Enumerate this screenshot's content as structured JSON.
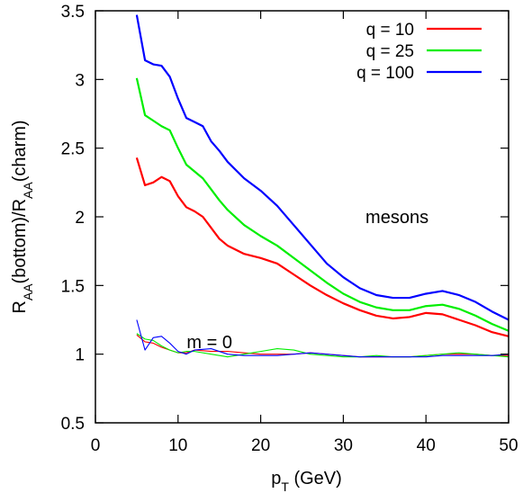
{
  "chart_data": {
    "type": "line",
    "title": "",
    "xlabel": {
      "main": "p",
      "sub": "T",
      "rest": " (GeV)"
    },
    "ylabel": {
      "p1": "R",
      "s1": "AA",
      "p2": "(bottom)/R",
      "s2": "AA",
      "p3": "(charm)"
    },
    "xlim": [
      0,
      50
    ],
    "ylim": [
      0.5,
      3.5
    ],
    "xticks": [
      0,
      10,
      20,
      30,
      40,
      50
    ],
    "yticks": [
      0.5,
      1,
      1.5,
      2,
      2.5,
      3,
      3.5
    ],
    "xtick_labels": [
      "0",
      "10",
      "20",
      "30",
      "40",
      "50"
    ],
    "ytick_labels": [
      "0.5",
      "1",
      "1.5",
      "2",
      "2.5",
      "3",
      "3.5"
    ],
    "grid": false,
    "legend_position": "top-right",
    "annotations": [
      {
        "text": "mesons",
        "x": 36.5,
        "y": 2.0
      },
      {
        "text": "m = 0",
        "x": 13.8,
        "y": 1.09
      }
    ],
    "series": [
      {
        "name": "q = 10",
        "color": "#ff0000",
        "group": "mesons",
        "x": [
          5,
          6,
          7,
          8,
          9,
          10,
          11,
          12,
          13,
          14,
          15,
          16,
          18,
          20,
          22,
          24,
          26,
          28,
          30,
          32,
          34,
          36,
          38,
          40,
          42,
          44,
          46,
          48,
          50
        ],
        "y": [
          2.43,
          2.23,
          2.25,
          2.29,
          2.26,
          2.15,
          2.07,
          2.04,
          2.0,
          1.92,
          1.84,
          1.79,
          1.73,
          1.7,
          1.66,
          1.58,
          1.5,
          1.43,
          1.37,
          1.32,
          1.28,
          1.26,
          1.27,
          1.3,
          1.29,
          1.25,
          1.21,
          1.16,
          1.13
        ]
      },
      {
        "name": "q = 25",
        "color": "#00ee00",
        "group": "mesons",
        "x": [
          5,
          6,
          7,
          8,
          9,
          10,
          11,
          12,
          13,
          14,
          15,
          16,
          18,
          20,
          22,
          24,
          26,
          28,
          30,
          32,
          34,
          36,
          38,
          40,
          42,
          44,
          46,
          48,
          50
        ],
        "y": [
          3.01,
          2.74,
          2.7,
          2.66,
          2.63,
          2.5,
          2.38,
          2.33,
          2.28,
          2.2,
          2.12,
          2.05,
          1.94,
          1.86,
          1.79,
          1.7,
          1.61,
          1.52,
          1.44,
          1.38,
          1.34,
          1.32,
          1.32,
          1.35,
          1.36,
          1.33,
          1.28,
          1.22,
          1.17
        ]
      },
      {
        "name": "q = 100",
        "color": "#0000ff",
        "group": "mesons",
        "x": [
          5,
          6,
          7,
          8,
          9,
          10,
          11,
          12,
          13,
          14,
          15,
          16,
          18,
          20,
          22,
          24,
          26,
          28,
          30,
          32,
          34,
          36,
          38,
          40,
          42,
          44,
          46,
          48,
          50
        ],
        "y": [
          3.47,
          3.14,
          3.11,
          3.1,
          3.02,
          2.86,
          2.72,
          2.69,
          2.66,
          2.55,
          2.48,
          2.4,
          2.28,
          2.19,
          2.08,
          1.94,
          1.8,
          1.66,
          1.56,
          1.48,
          1.43,
          1.41,
          1.41,
          1.44,
          1.46,
          1.43,
          1.38,
          1.31,
          1.25
        ]
      },
      {
        "name": "",
        "color": "#ff0000",
        "group": "m = 0",
        "x": [
          5,
          6,
          7,
          8,
          9,
          10,
          11,
          12,
          14,
          16,
          18,
          20,
          22,
          24,
          26,
          28,
          30,
          32,
          34,
          36,
          38,
          40,
          42,
          44,
          46,
          48,
          50
        ],
        "y": [
          1.14,
          1.09,
          1.08,
          1.05,
          1.03,
          1.01,
          1.01,
          1.03,
          1.02,
          1.02,
          1.01,
          1.0,
          1.0,
          1.0,
          1.01,
          1.0,
          0.99,
          0.98,
          0.98,
          0.98,
          0.98,
          0.99,
          1.0,
          1.0,
          1.0,
          0.99,
          0.99
        ]
      },
      {
        "name": "",
        "color": "#00ee00",
        "group": "m = 0",
        "x": [
          5,
          6,
          7,
          8,
          9,
          10,
          11,
          12,
          14,
          16,
          18,
          20,
          22,
          24,
          26,
          28,
          30,
          32,
          34,
          36,
          38,
          40,
          42,
          44,
          46,
          48,
          50
        ],
        "y": [
          1.15,
          1.11,
          1.1,
          1.06,
          1.03,
          1.01,
          1.02,
          1.02,
          1.0,
          0.98,
          1.0,
          1.02,
          1.04,
          1.03,
          1.0,
          0.99,
          0.98,
          0.98,
          0.99,
          0.98,
          0.98,
          0.99,
          1.0,
          1.01,
          1.0,
          0.99,
          0.98
        ]
      },
      {
        "name": "",
        "color": "#0000ff",
        "group": "m = 0",
        "x": [
          5,
          6,
          7,
          8,
          9,
          10,
          11,
          12,
          14,
          16,
          18,
          20,
          22,
          24,
          26,
          28,
          30,
          32,
          34,
          36,
          38,
          40,
          42,
          44,
          46,
          48,
          50
        ],
        "y": [
          1.25,
          1.03,
          1.12,
          1.13,
          1.08,
          1.02,
          1.0,
          1.03,
          1.04,
          1.0,
          0.99,
          0.99,
          0.99,
          1.0,
          1.01,
          1.0,
          0.99,
          0.98,
          0.98,
          0.98,
          0.98,
          0.98,
          0.99,
          0.99,
          0.99,
          0.99,
          1.0
        ]
      }
    ]
  }
}
